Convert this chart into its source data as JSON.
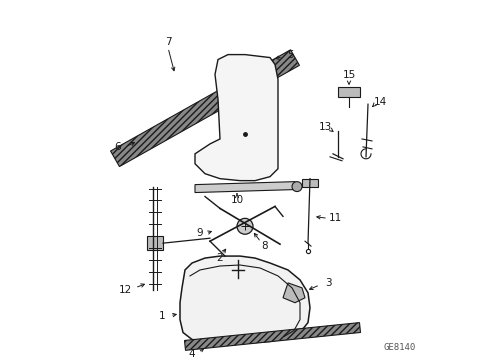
{
  "bg_color": "#ffffff",
  "line_color": "#1a1a1a",
  "diagram_code": "GE8140",
  "figsize": [
    4.9,
    3.6
  ],
  "dpi": 100
}
